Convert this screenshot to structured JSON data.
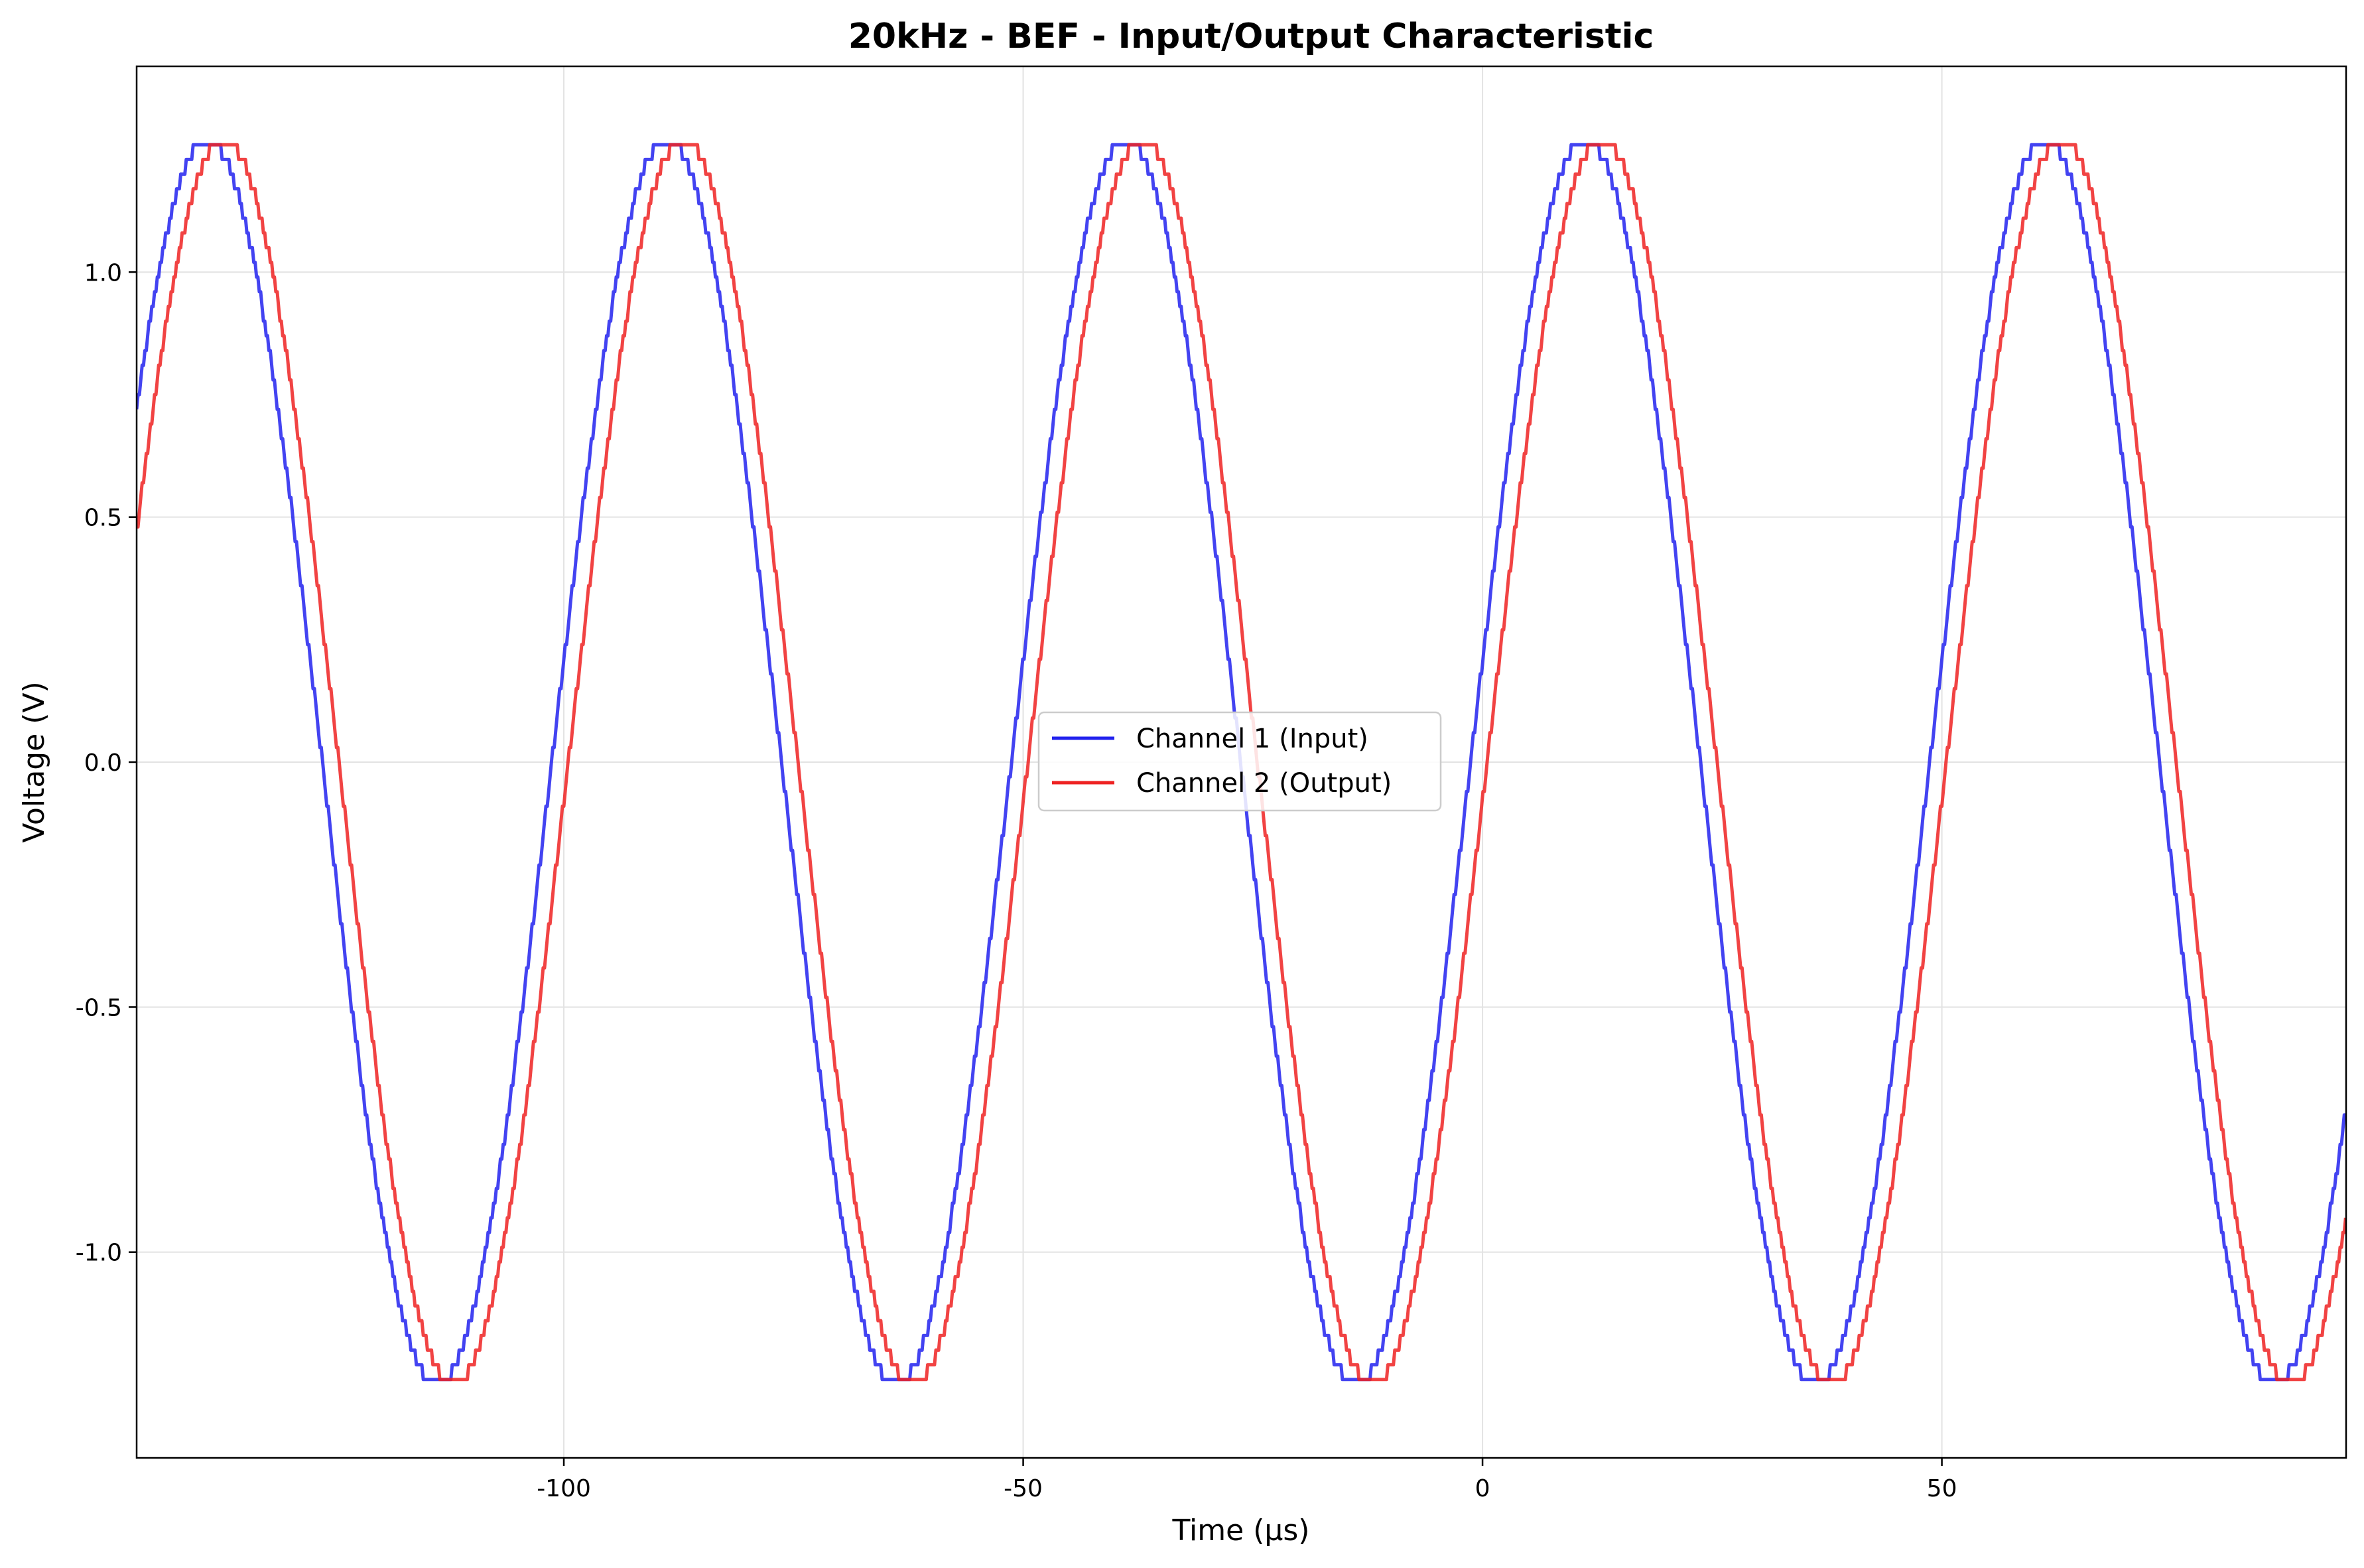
{
  "chart_data": {
    "type": "line",
    "title": "20kHz - BEF - Input/Output Characteristic",
    "xlabel": "Time (µs)",
    "ylabel": "Voltage (V)",
    "xlim": [
      -146.5,
      94
    ],
    "ylim": [
      -1.42,
      1.42
    ],
    "x_ticks": [
      -100,
      -50,
      0,
      50
    ],
    "x_tick_labels": [
      "-100",
      "-50",
      "0",
      "50"
    ],
    "y_ticks": [
      -1.0,
      -0.5,
      0.0,
      0.5,
      1.0
    ],
    "y_tick_labels": [
      "-1.0",
      "-0.5",
      "0.0",
      "0.5",
      "1.0"
    ],
    "grid": true,
    "legend_position": "center",
    "series": [
      {
        "name": "Channel 1 (Input)",
        "color": "#2222ee",
        "waveform": "sine",
        "frequency_khz": 20,
        "period_us": 50,
        "amplitude_v": 1.27,
        "peak_times_us": [
          -138.8,
          -88.8,
          -38.8,
          11.2,
          61.2
        ],
        "trough_times_us": [
          -113.8,
          -63.8,
          -13.8,
          36.2,
          86.2
        ],
        "quantization_v": 0.03
      },
      {
        "name": "Channel 2 (Output)",
        "color": "#ee2222",
        "waveform": "sine",
        "frequency_khz": 20,
        "period_us": 50,
        "amplitude_v": 1.27,
        "peak_times_us": [
          -137.0,
          -87.0,
          -37.0,
          13.0,
          63.0
        ],
        "trough_times_us": [
          -112.0,
          -62.0,
          -12.0,
          38.0,
          88.0
        ],
        "quantization_v": 0.03
      }
    ]
  }
}
